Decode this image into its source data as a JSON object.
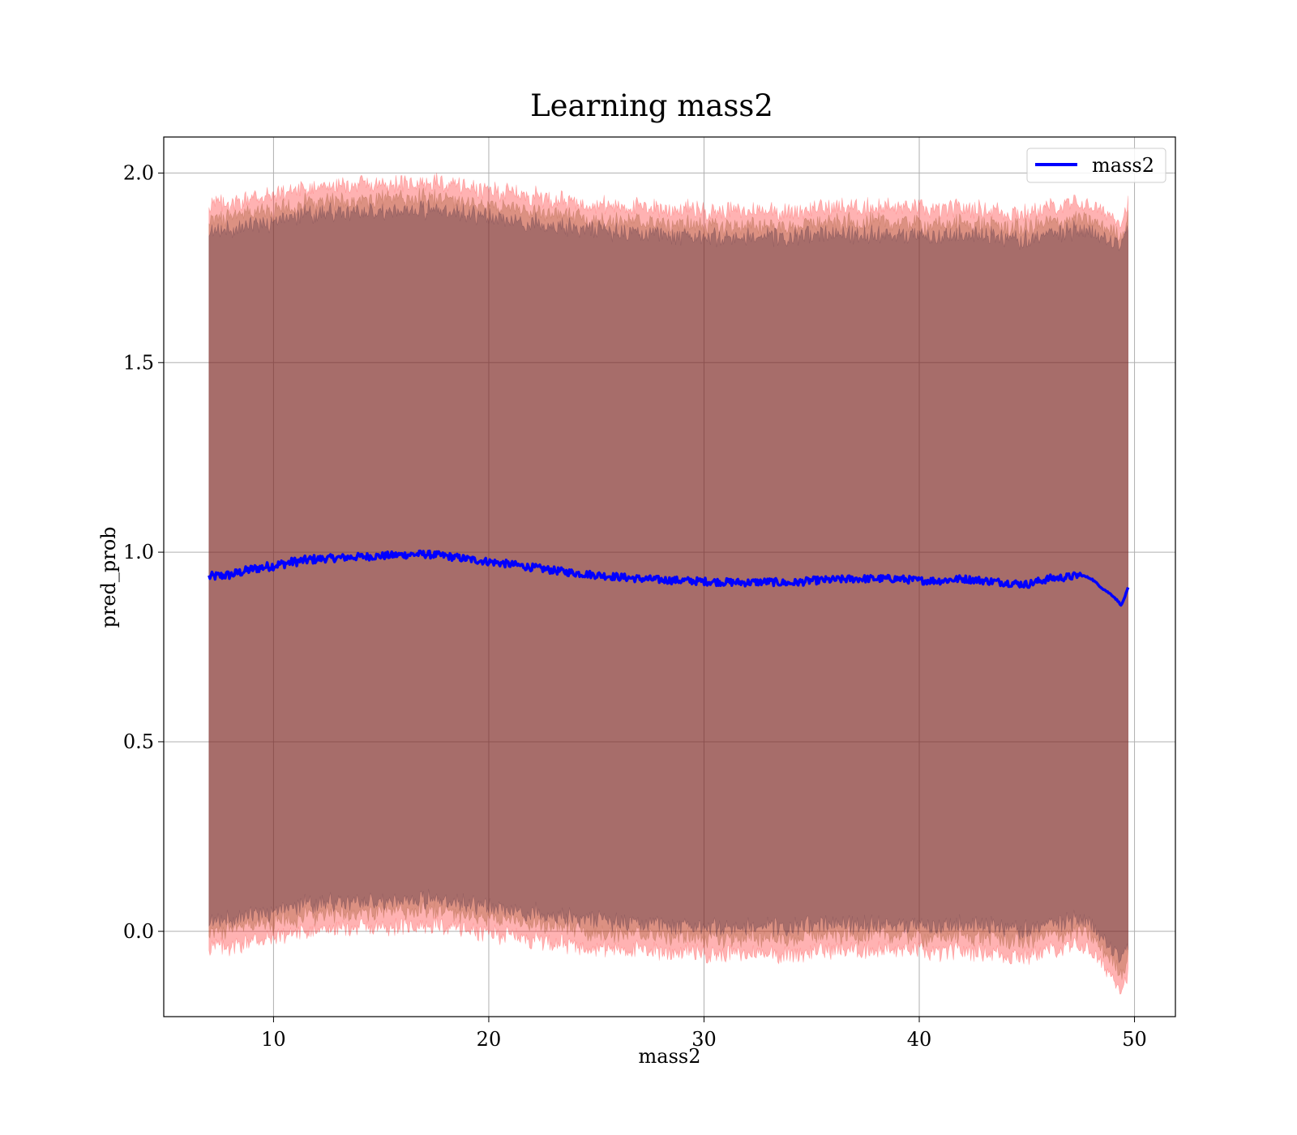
{
  "chart_data": {
    "type": "line",
    "title": "Learning mass2",
    "xlabel": "mass2",
    "ylabel": "pred_prob",
    "xlim": [
      4.9,
      51.9
    ],
    "ylim": [
      -0.225,
      2.095
    ],
    "xticks": [
      10,
      20,
      30,
      40,
      50
    ],
    "yticks": [
      0.0,
      0.5,
      1.0,
      1.5,
      2.0
    ],
    "xtick_labels": [
      "10",
      "20",
      "30",
      "40",
      "50"
    ],
    "ytick_labels": [
      "0.0",
      "0.5",
      "1.0",
      "1.5",
      "2.0"
    ],
    "grid": true,
    "legend_position": "top-right",
    "series": [
      {
        "name": "mass2",
        "color": "#0000ff",
        "x": [
          7.0,
          8.0,
          9.0,
          10.0,
          11.0,
          12.0,
          13.0,
          14.0,
          15.0,
          16.0,
          17.0,
          18.0,
          19.0,
          20.0,
          21.0,
          22.0,
          23.0,
          24.0,
          25.0,
          26.0,
          27.0,
          28.0,
          29.0,
          30.0,
          31.0,
          32.0,
          33.0,
          34.0,
          35.0,
          36.0,
          37.0,
          38.0,
          39.0,
          40.0,
          41.0,
          42.0,
          43.0,
          44.0,
          45.0,
          46.0,
          47.0,
          47.5,
          48.0,
          48.5,
          49.0,
          49.4,
          49.7
        ],
        "y": [
          0.935,
          0.94,
          0.955,
          0.965,
          0.975,
          0.982,
          0.985,
          0.988,
          0.99,
          0.993,
          0.995,
          0.99,
          0.982,
          0.975,
          0.968,
          0.96,
          0.952,
          0.945,
          0.94,
          0.935,
          0.93,
          0.927,
          0.925,
          0.923,
          0.921,
          0.92,
          0.922,
          0.918,
          0.925,
          0.927,
          0.93,
          0.93,
          0.93,
          0.925,
          0.925,
          0.93,
          0.925,
          0.92,
          0.915,
          0.93,
          0.935,
          0.94,
          0.93,
          0.905,
          0.885,
          0.86,
          0.905
        ]
      }
    ],
    "bands": [
      {
        "name": "",
        "color": "#ff0000",
        "opacity": 0.3,
        "halfwidth": 0.98
      },
      {
        "name": "",
        "color": "#8b4513",
        "opacity": 0.3,
        "halfwidth": 0.94
      },
      {
        "name": "",
        "color": "#301934",
        "opacity": 0.3,
        "halfwidth": 0.91
      }
    ]
  }
}
